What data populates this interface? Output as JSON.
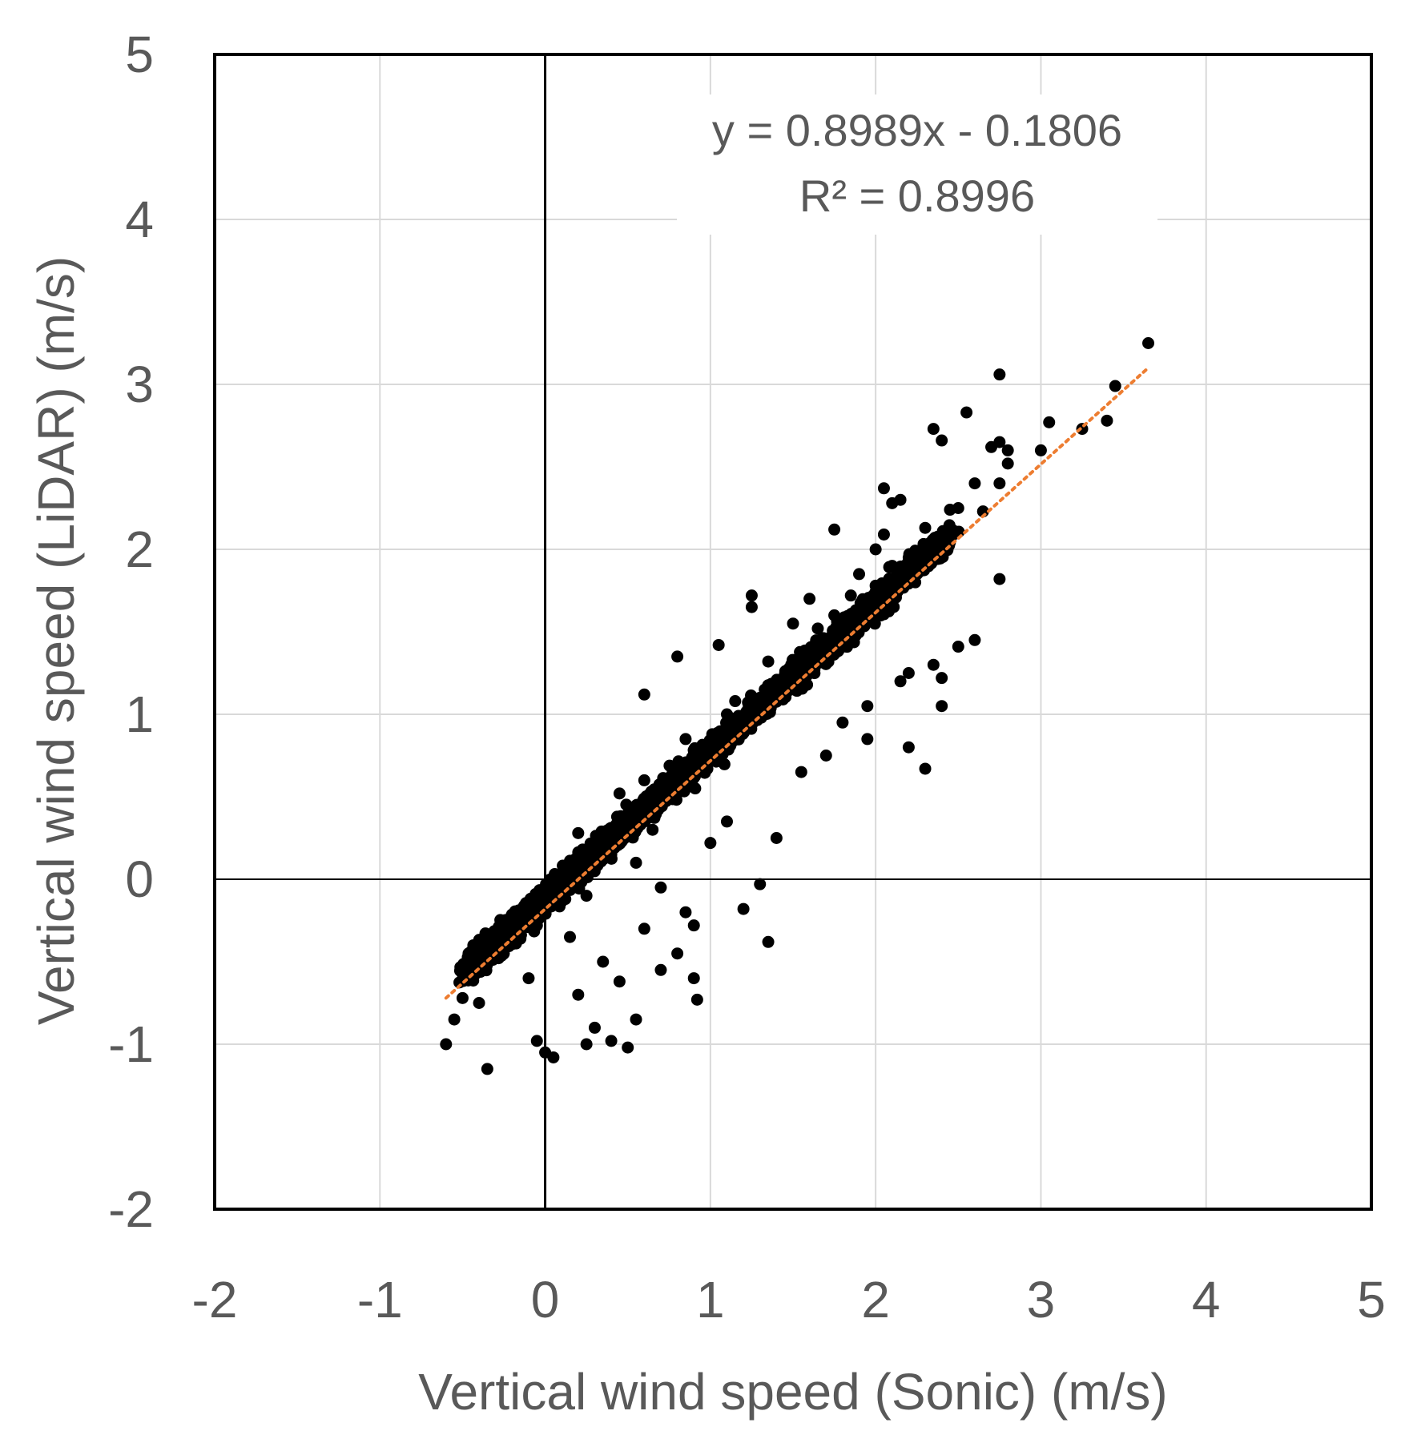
{
  "chart_data": {
    "type": "scatter",
    "title": "",
    "xlabel": "Vertical wind speed (Sonic) (m/s)",
    "ylabel": "Vertical wind speed (LiDAR) (m/s)",
    "xlim": [
      -2,
      5
    ],
    "ylim": [
      -2,
      5
    ],
    "xticks": [
      "-2",
      "-1",
      "0",
      "1",
      "2",
      "3",
      "4",
      "5"
    ],
    "yticks": [
      "-2",
      "-1",
      "0",
      "1",
      "2",
      "3",
      "4",
      "5"
    ],
    "grid": true,
    "legend": "none",
    "trendline": {
      "type": "linear",
      "slope": 0.8989,
      "intercept": -0.1806,
      "x_range": [
        -0.6,
        3.65
      ],
      "style": "dotted",
      "color": "#ED7D31",
      "equation_label": "y = 0.8989x - 0.1806",
      "r2_label": "R² = 0.8996"
    },
    "colors": {
      "points": "#000000",
      "trendline": "#ED7D31",
      "grid": "#d9d9d9",
      "text": "#595959"
    },
    "series": [
      {
        "points": [
          [
            3.65,
            3.25
          ],
          [
            2.75,
            3.06
          ],
          [
            3.45,
            2.99
          ],
          [
            2.55,
            2.83
          ],
          [
            3.05,
            2.77
          ],
          [
            3.4,
            2.78
          ],
          [
            3.25,
            2.73
          ],
          [
            2.35,
            2.73
          ],
          [
            2.4,
            2.66
          ],
          [
            2.7,
            2.62
          ],
          [
            2.75,
            2.65
          ],
          [
            2.8,
            2.6
          ],
          [
            3.0,
            2.6
          ],
          [
            2.8,
            2.52
          ],
          [
            2.75,
            2.4
          ],
          [
            2.6,
            2.4
          ],
          [
            2.05,
            2.37
          ],
          [
            2.15,
            2.3
          ],
          [
            2.1,
            2.28
          ],
          [
            2.45,
            2.24
          ],
          [
            2.5,
            2.25
          ],
          [
            2.65,
            2.23
          ],
          [
            2.3,
            2.13
          ],
          [
            1.75,
            2.12
          ],
          [
            2.05,
            2.09
          ],
          [
            2.0,
            2.0
          ],
          [
            2.35,
            1.95
          ],
          [
            2.75,
            1.82
          ],
          [
            2.6,
            1.45
          ],
          [
            2.5,
            1.41
          ],
          [
            2.4,
            1.22
          ],
          [
            2.35,
            1.3
          ],
          [
            2.4,
            1.05
          ],
          [
            2.2,
            1.25
          ],
          [
            2.3,
            0.67
          ],
          [
            2.2,
            0.8
          ],
          [
            2.15,
            1.2
          ],
          [
            1.95,
            0.85
          ],
          [
            1.95,
            1.05
          ],
          [
            0.8,
            1.35
          ],
          [
            1.25,
            1.72
          ],
          [
            1.25,
            1.65
          ],
          [
            0.6,
            1.12
          ],
          [
            1.05,
            1.42
          ],
          [
            1.3,
            -0.03
          ],
          [
            1.35,
            -0.38
          ],
          [
            1.2,
            -0.18
          ],
          [
            1.0,
            0.22
          ],
          [
            0.9,
            -0.28
          ],
          [
            0.92,
            -0.73
          ],
          [
            0.9,
            -0.6
          ],
          [
            0.5,
            -1.02
          ],
          [
            0.4,
            -0.98
          ],
          [
            0.25,
            -1.0
          ],
          [
            0.05,
            -1.08
          ],
          [
            0.0,
            -1.05
          ],
          [
            -0.05,
            -0.98
          ],
          [
            -0.35,
            -1.15
          ],
          [
            -0.6,
            -1.0
          ],
          [
            -0.55,
            -0.85
          ],
          [
            0.55,
            -0.85
          ],
          [
            0.3,
            -0.9
          ],
          [
            0.2,
            -0.7
          ],
          [
            0.45,
            -0.62
          ],
          [
            0.7,
            -0.55
          ],
          [
            0.8,
            -0.45
          ],
          [
            0.15,
            -0.35
          ],
          [
            -0.1,
            -0.6
          ],
          [
            -0.4,
            -0.75
          ],
          [
            -0.5,
            -0.72
          ],
          [
            0.35,
            -0.5
          ],
          [
            0.6,
            -0.3
          ],
          [
            0.85,
            -0.2
          ],
          [
            0.7,
            -0.05
          ],
          [
            1.1,
            0.35
          ],
          [
            1.4,
            0.25
          ],
          [
            1.55,
            0.65
          ],
          [
            1.7,
            0.75
          ],
          [
            1.8,
            0.95
          ],
          [
            1.5,
            1.55
          ],
          [
            1.6,
            1.7
          ],
          [
            1.65,
            1.52
          ],
          [
            1.9,
            1.85
          ],
          [
            1.85,
            1.72
          ],
          [
            2.0,
            1.78
          ],
          [
            2.1,
            1.9
          ],
          [
            2.2,
            1.95
          ],
          [
            2.25,
            1.88
          ],
          [
            2.3,
            2.0
          ],
          [
            1.45,
            1.2
          ],
          [
            1.35,
            1.32
          ],
          [
            1.15,
            1.08
          ],
          [
            1.0,
            0.75
          ],
          [
            0.95,
            0.7
          ],
          [
            1.2,
            0.95
          ],
          [
            0.5,
            0.35
          ],
          [
            0.45,
            0.52
          ],
          [
            0.3,
            0.18
          ],
          [
            0.2,
            0.28
          ],
          [
            0.1,
            0.02
          ],
          [
            0.0,
            -0.1
          ],
          [
            -0.15,
            -0.3
          ],
          [
            -0.3,
            -0.4
          ],
          [
            -0.2,
            -0.22
          ],
          [
            0.6,
            0.6
          ],
          [
            0.75,
            0.55
          ],
          [
            0.85,
            0.85
          ],
          [
            1.1,
            1.0
          ],
          [
            1.3,
            1.1
          ],
          [
            1.5,
            1.25
          ],
          [
            1.7,
            1.45
          ],
          [
            1.75,
            1.6
          ],
          [
            0.4,
            0.15
          ],
          [
            0.55,
            0.1
          ],
          [
            0.65,
            0.3
          ],
          [
            0.25,
            -0.1
          ],
          [
            0.15,
            -0.05
          ],
          [
            -0.05,
            -0.28
          ],
          [
            -0.25,
            -0.45
          ],
          [
            -0.45,
            -0.55
          ]
        ]
      }
    ]
  }
}
